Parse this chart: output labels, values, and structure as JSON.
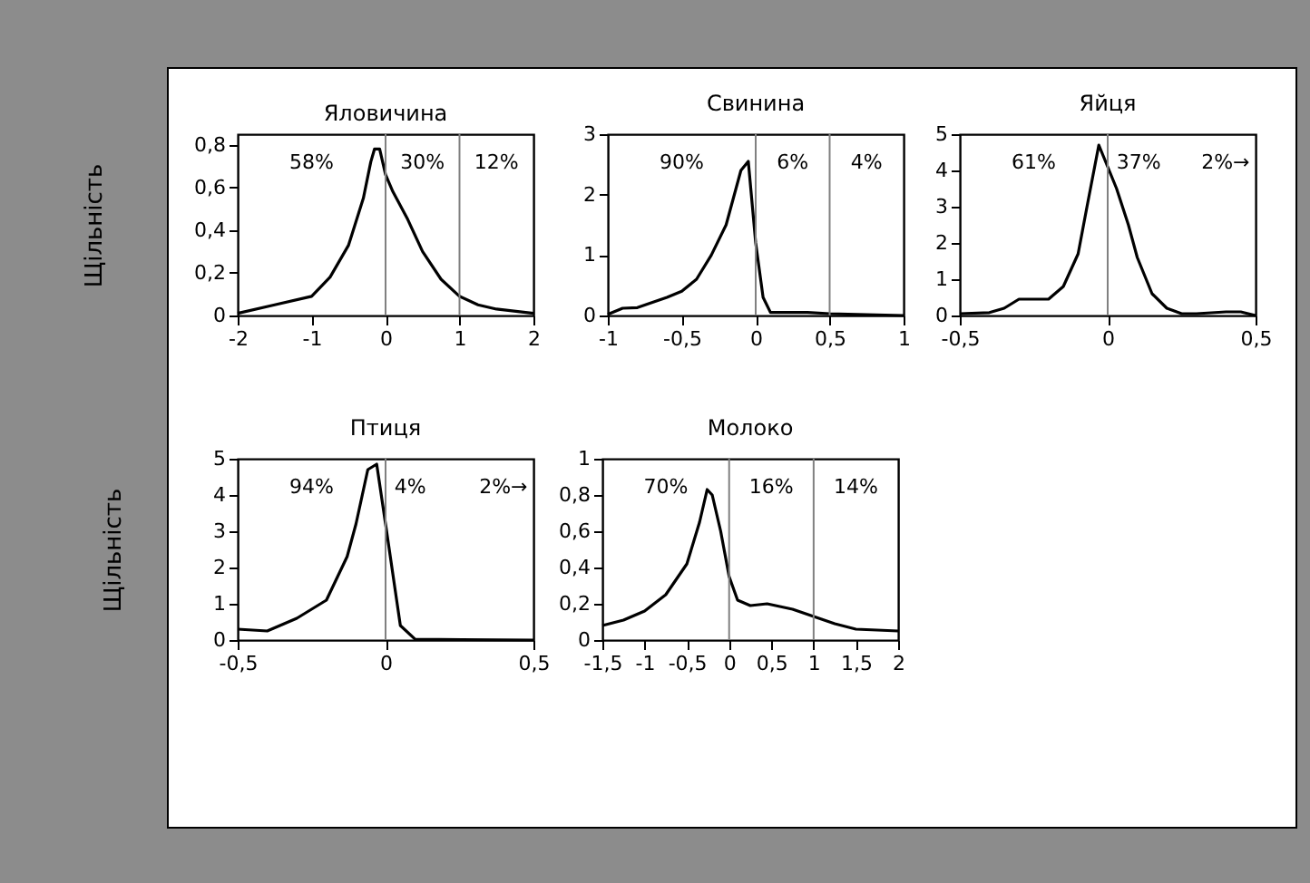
{
  "chart_data": [
    {
      "type": "line",
      "title": "Яловичина",
      "ylabel": "Щільність",
      "grid": false,
      "xlim": [
        -2,
        2
      ],
      "ylim": [
        0,
        0.85
      ],
      "xticks": [
        -2,
        -1,
        0,
        1,
        2
      ],
      "yticks": [
        0,
        {
          "value": 0.2,
          "label": "0,2"
        },
        {
          "value": 0.4,
          "label": "0,4"
        },
        {
          "value": 0.6,
          "label": "0,6"
        },
        {
          "value": 0.8,
          "label": "0,8"
        }
      ],
      "series": [
        {
          "color": "#000000",
          "x": [
            -2,
            -1.5,
            -1,
            -0.75,
            -0.5,
            -0.3,
            -0.2,
            -0.15,
            -0.08,
            0,
            0.1,
            0.3,
            0.5,
            0.75,
            1,
            1.25,
            1.5,
            2
          ],
          "values": [
            0.01,
            0.05,
            0.09,
            0.18,
            0.33,
            0.55,
            0.72,
            0.78,
            0.78,
            0.66,
            0.58,
            0.45,
            0.3,
            0.17,
            0.09,
            0.05,
            0.03,
            0.01
          ]
        }
      ],
      "ref_lines": [
        {
          "axis": "x",
          "value": 0,
          "color": "#808080"
        },
        {
          "axis": "x",
          "value": 1,
          "color": "#808080"
        }
      ],
      "annotations": [
        "58%",
        "30%",
        "12%"
      ]
    },
    {
      "type": "line",
      "title": "Свинина",
      "grid": false,
      "xlim": [
        -1,
        1
      ],
      "ylim": [
        0,
        3
      ],
      "xticks": [
        -1,
        {
          "value": -0.5,
          "label": "-0,5"
        },
        0,
        {
          "value": 0.5,
          "label": "0,5"
        },
        1
      ],
      "yticks": [
        0,
        1,
        2,
        3
      ],
      "series": [
        {
          "color": "#000000",
          "x": [
            -1,
            -0.9,
            -0.8,
            -0.6,
            -0.5,
            -0.4,
            -0.3,
            -0.2,
            -0.1,
            -0.05,
            0,
            0.05,
            0.1,
            0.35,
            0.5,
            1
          ],
          "values": [
            0.02,
            0.12,
            0.13,
            0.3,
            0.4,
            0.6,
            1.0,
            1.5,
            2.4,
            2.55,
            1.2,
            0.3,
            0.05,
            0.05,
            0.03,
            0
          ]
        }
      ],
      "ref_lines": [
        {
          "axis": "x",
          "value": 0,
          "color": "#808080"
        },
        {
          "axis": "x",
          "value": 0.5,
          "color": "#808080"
        }
      ],
      "annotations": [
        "90%",
        "6%",
        "4%"
      ]
    },
    {
      "type": "line",
      "title": "Яйця",
      "grid": false,
      "xlim": [
        -0.5,
        0.5
      ],
      "ylim": [
        0,
        5
      ],
      "xticks": [
        {
          "value": -0.5,
          "label": "-0,5"
        },
        0,
        {
          "value": 0.5,
          "label": "0,5"
        }
      ],
      "yticks": [
        0,
        1,
        2,
        3,
        4,
        5
      ],
      "series": [
        {
          "color": "#000000",
          "x": [
            -0.5,
            -0.4,
            -0.35,
            -0.3,
            -0.2,
            -0.15,
            -0.1,
            -0.07,
            -0.03,
            0,
            0.03,
            0.07,
            0.1,
            0.15,
            0.2,
            0.25,
            0.3,
            0.4,
            0.45,
            0.5
          ],
          "values": [
            0.05,
            0.08,
            0.2,
            0.45,
            0.45,
            0.8,
            1.7,
            3,
            4.7,
            4.1,
            3.5,
            2.5,
            1.6,
            0.6,
            0.2,
            0.05,
            0.05,
            0.1,
            0.1,
            0
          ]
        }
      ],
      "ref_lines": [
        {
          "axis": "x",
          "value": 0,
          "color": "#808080"
        }
      ],
      "annotations": [
        "61%",
        "37%",
        "2%→"
      ]
    },
    {
      "type": "line",
      "title": "Птиця",
      "ylabel": "Щільність",
      "grid": false,
      "xlim": [
        -0.5,
        0.5
      ],
      "ylim": [
        0,
        5
      ],
      "xticks": [
        {
          "value": -0.5,
          "label": "-0,5"
        },
        0,
        {
          "value": 0.5,
          "label": "0,5"
        }
      ],
      "yticks": [
        0,
        1,
        2,
        3,
        4,
        5
      ],
      "series": [
        {
          "color": "#000000",
          "x": [
            -0.5,
            -0.4,
            -0.3,
            -0.2,
            -0.13,
            -0.1,
            -0.06,
            -0.03,
            0,
            0.05,
            0.1,
            0.5
          ],
          "values": [
            0.3,
            0.25,
            0.6,
            1.1,
            2.3,
            3.2,
            4.7,
            4.85,
            3.2,
            0.4,
            0.02,
            0
          ]
        }
      ],
      "ref_lines": [
        {
          "axis": "x",
          "value": 0,
          "color": "#808080"
        }
      ],
      "annotations": [
        "94%",
        "4%",
        "2%→"
      ]
    },
    {
      "type": "line",
      "title": "Молоко",
      "grid": false,
      "xlim": [
        -1.5,
        2
      ],
      "ylim": [
        0,
        1
      ],
      "xticks": [
        {
          "value": -1.5,
          "label": "-1,5"
        },
        -1,
        {
          "value": -0.5,
          "label": "-0,5"
        },
        0,
        {
          "value": 0.5,
          "label": "0,5"
        },
        1,
        {
          "value": 1.5,
          "label": "1,5"
        },
        2
      ],
      "yticks": [
        0,
        {
          "value": 0.2,
          "label": "0,2"
        },
        {
          "value": 0.4,
          "label": "0,4"
        },
        {
          "value": 0.6,
          "label": "0,6"
        },
        {
          "value": 0.8,
          "label": "0,8"
        },
        1
      ],
      "series": [
        {
          "color": "#000000",
          "x": [
            -1.5,
            -1.25,
            -1,
            -0.75,
            -0.5,
            -0.35,
            -0.26,
            -0.2,
            -0.1,
            0,
            0.1,
            0.25,
            0.45,
            0.75,
            1,
            1.25,
            1.5,
            2
          ],
          "values": [
            0.08,
            0.11,
            0.16,
            0.25,
            0.42,
            0.65,
            0.83,
            0.8,
            0.6,
            0.35,
            0.22,
            0.19,
            0.2,
            0.17,
            0.13,
            0.09,
            0.06,
            0.05
          ]
        }
      ],
      "ref_lines": [
        {
          "axis": "x",
          "value": 0,
          "color": "#808080"
        },
        {
          "axis": "x",
          "value": 1,
          "color": "#808080"
        }
      ],
      "annotations": [
        "70%",
        "16%",
        "14%"
      ]
    }
  ]
}
